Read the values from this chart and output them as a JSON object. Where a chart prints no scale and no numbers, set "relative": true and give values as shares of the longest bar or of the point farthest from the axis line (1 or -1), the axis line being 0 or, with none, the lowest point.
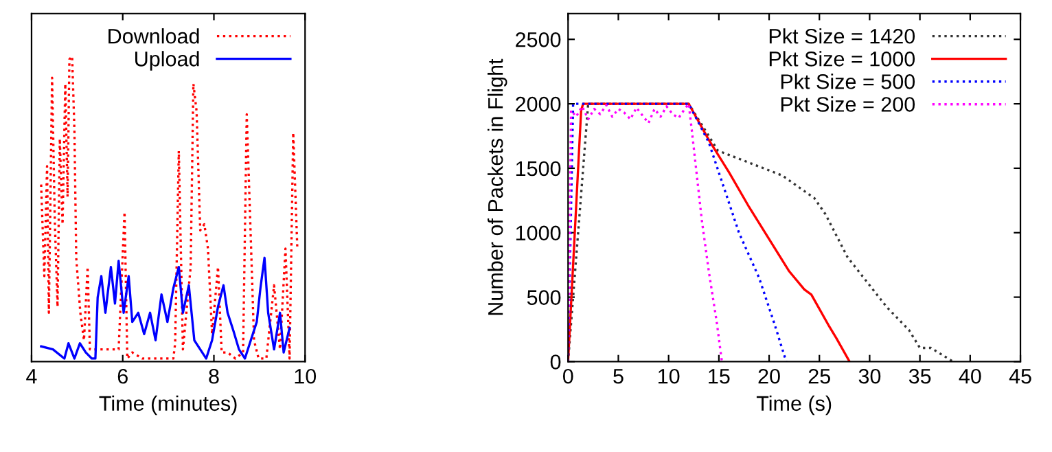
{
  "chart_data": [
    {
      "type": "line",
      "xlabel": "Time (minutes)",
      "relative": true,
      "xlim": [
        4,
        10
      ],
      "xticks": [
        4,
        6,
        8,
        10
      ],
      "legend": "top right",
      "grid": false,
      "series": [
        {
          "name": "Download",
          "color": "#ff0000",
          "line_style": "dotted",
          "x": [
            4.21,
            4.28,
            4.34,
            4.38,
            4.45,
            4.51,
            4.57,
            4.62,
            4.68,
            4.74,
            4.79,
            4.83,
            4.89,
            4.94,
            4.98,
            5.07,
            5.15,
            5.23,
            5.28,
            5.36,
            5.49,
            5.62,
            5.74,
            5.91,
            6.04,
            6.1,
            6.21,
            6.43,
            6.6,
            6.77,
            7.11,
            7.15,
            7.23,
            7.32,
            7.49,
            7.55,
            7.62,
            7.7,
            7.79,
            7.87,
            7.96,
            8.09,
            8.17,
            8.3,
            8.47,
            8.64,
            8.72,
            8.81,
            8.88,
            8.98,
            9.15,
            9.32,
            9.45,
            9.57,
            9.66,
            9.74,
            9.83
          ],
          "values": [
            0.58,
            0.28,
            0.64,
            0.16,
            0.93,
            0.46,
            0.18,
            0.73,
            0.45,
            0.91,
            0.54,
            0.99,
            1,
            0.76,
            0.34,
            0.16,
            0.07,
            0.31,
            0.04,
            0.04,
            0.04,
            0.04,
            0.04,
            0.04,
            0.49,
            0.01,
            0.03,
            0.01,
            0.01,
            0.01,
            0.01,
            0.06,
            0.69,
            0.04,
            0.31,
            0.91,
            0.82,
            0.43,
            0.45,
            0.37,
            0.09,
            0.31,
            0.03,
            0.03,
            0.01,
            0.03,
            0.81,
            0.4,
            0.07,
            0.01,
            0.01,
            0.25,
            0.04,
            0.37,
            0.01,
            0.75,
            0.37
          ]
        },
        {
          "name": "Upload",
          "color": "#0000ff",
          "line_style": "solid",
          "x": [
            4.21,
            4.47,
            4.72,
            4.81,
            4.94,
            5.06,
            5.19,
            5.32,
            5.4,
            5.45,
            5.53,
            5.62,
            5.74,
            5.83,
            5.91,
            6.02,
            6.13,
            6.21,
            6.34,
            6.47,
            6.6,
            6.72,
            6.85,
            6.98,
            7.11,
            7.23,
            7.32,
            7.45,
            7.57,
            7.7,
            7.83,
            7.96,
            8.09,
            8.21,
            8.3,
            8.43,
            8.55,
            8.68,
            8.81,
            8.94,
            9.02,
            9.11,
            9.19,
            9.32,
            9.45,
            9.53,
            9.66
          ],
          "values": [
            0.05,
            0.04,
            0.01,
            0.06,
            0.01,
            0.06,
            0.03,
            0.01,
            0.01,
            0.21,
            0.28,
            0.16,
            0.31,
            0.19,
            0.33,
            0.16,
            0.28,
            0.13,
            0.16,
            0.09,
            0.16,
            0.07,
            0.22,
            0.13,
            0.24,
            0.31,
            0.16,
            0.25,
            0.07,
            0.04,
            0.01,
            0.07,
            0.18,
            0.25,
            0.16,
            0.1,
            0.04,
            0.01,
            0.07,
            0.13,
            0.24,
            0.34,
            0.16,
            0.04,
            0.16,
            0.03,
            0.11
          ]
        }
      ]
    },
    {
      "type": "line",
      "xlabel": "Time (s)",
      "ylabel": "Number of Packets in Flight",
      "xlim": [
        0,
        45
      ],
      "xticks": [
        0,
        5,
        10,
        15,
        20,
        25,
        30,
        35,
        40,
        45
      ],
      "ylim": [
        0,
        2700
      ],
      "yticks": [
        0,
        500,
        1000,
        1500,
        2000,
        2500
      ],
      "legend": "top right",
      "grid": false,
      "series": [
        {
          "name": "Pkt Size = 1420",
          "color": "#333333",
          "line_style": "dotted",
          "x": [
            0,
            1,
            2,
            12,
            14.9,
            21.3,
            24.5,
            25.6,
            27.8,
            31.7,
            33.9,
            35.0,
            36.1,
            38.3
          ],
          "values": [
            0,
            1000,
            2000,
            2000,
            1637,
            1444,
            1268,
            1144,
            810,
            423,
            246,
            106,
            106,
            0
          ]
        },
        {
          "name": "Pkt Size = 1000",
          "color": "#ff0000",
          "line_style": "solid",
          "x": [
            0,
            1.3,
            1.5,
            12,
            14,
            16,
            18,
            20,
            22,
            23.5,
            24.2,
            26,
            26.7,
            28
          ],
          "values": [
            0,
            1950,
            2000,
            2000,
            1720,
            1470,
            1200,
            950,
            700,
            560,
            520,
            270,
            180,
            0
          ]
        },
        {
          "name": "Pkt Size = 500",
          "color": "#0000ff",
          "line_style": "dotted",
          "x": [
            0,
            0.5,
            12,
            14,
            15.5,
            17,
            19,
            20.5,
            21.7
          ],
          "values": [
            0,
            2000,
            2000,
            1700,
            1350,
            1000,
            650,
            300,
            0
          ]
        },
        {
          "name": "Pkt Size = 200",
          "color": "#ff00ff",
          "line_style": "dotted",
          "x": [
            0,
            0.3,
            0.8,
            1.4,
            2,
            2.6,
            3.2,
            3.8,
            4.4,
            5,
            5.6,
            6.2,
            6.8,
            7.4,
            8,
            8.6,
            9.2,
            9.8,
            10.4,
            11,
            11.6,
            12,
            12.3,
            13.3,
            14,
            14.8,
            15.3
          ],
          "values": [
            0,
            1950,
            1900,
            1980,
            1880,
            1960,
            1920,
            1990,
            1900,
            1960,
            1930,
            1880,
            1970,
            1910,
            1850,
            1960,
            1900,
            1980,
            1920,
            1890,
            1960,
            2000,
            1800,
            1100,
            700,
            300,
            0
          ]
        }
      ]
    }
  ]
}
